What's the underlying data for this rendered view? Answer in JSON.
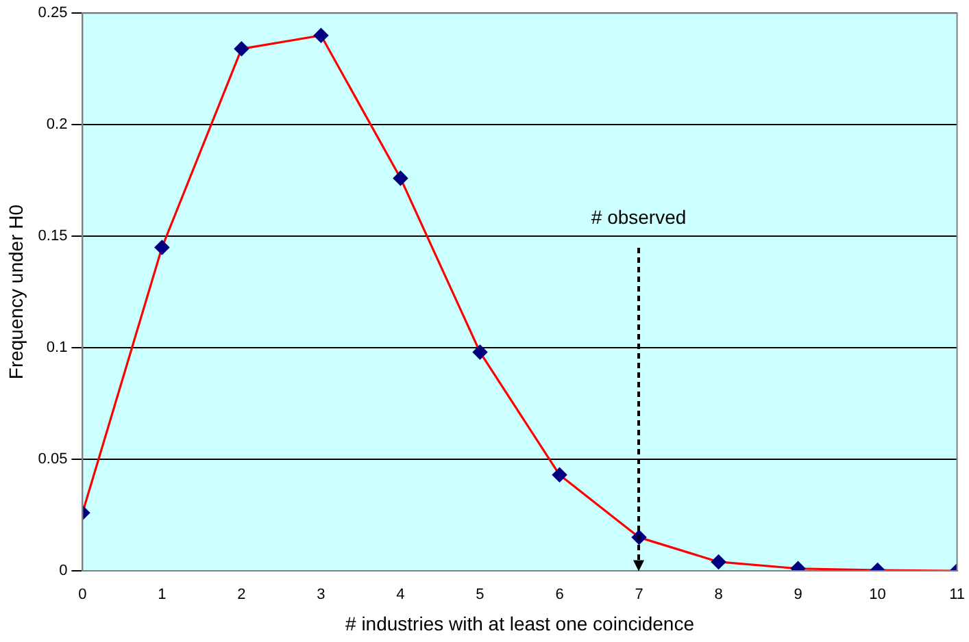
{
  "chart_data": {
    "type": "line",
    "xlabel": "# industries with at least one coincidence",
    "ylabel": "Frequency under H0",
    "x": [
      0,
      1,
      2,
      3,
      4,
      5,
      6,
      7,
      8,
      9,
      10,
      11
    ],
    "series": [
      {
        "color": "#ff0000",
        "colors": [
          "#000080",
          "#000080",
          "#000080",
          "#000080",
          "#000080",
          "#000080",
          "#000080",
          "#000080",
          "#000080",
          "#000080",
          "#000080",
          "#000080"
        ],
        "values": [
          0.026,
          0.145,
          0.234,
          0.24,
          0.176,
          0.098,
          0.043,
          0.015,
          0.004,
          0.001,
          0.0003,
          0
        ]
      }
    ],
    "xlim": [
      0,
      11
    ],
    "xticks": [
      0,
      1,
      2,
      3,
      4,
      5,
      6,
      7,
      8,
      9,
      10,
      11
    ],
    "ylim": [
      0,
      0.25
    ],
    "yticks": [
      0,
      0.05,
      0.1,
      0.15,
      0.2,
      0.25
    ],
    "grid": "y",
    "marker": "diamond",
    "line_style": "solid",
    "legend": false,
    "annotations": [
      "# observed"
    ]
  }
}
